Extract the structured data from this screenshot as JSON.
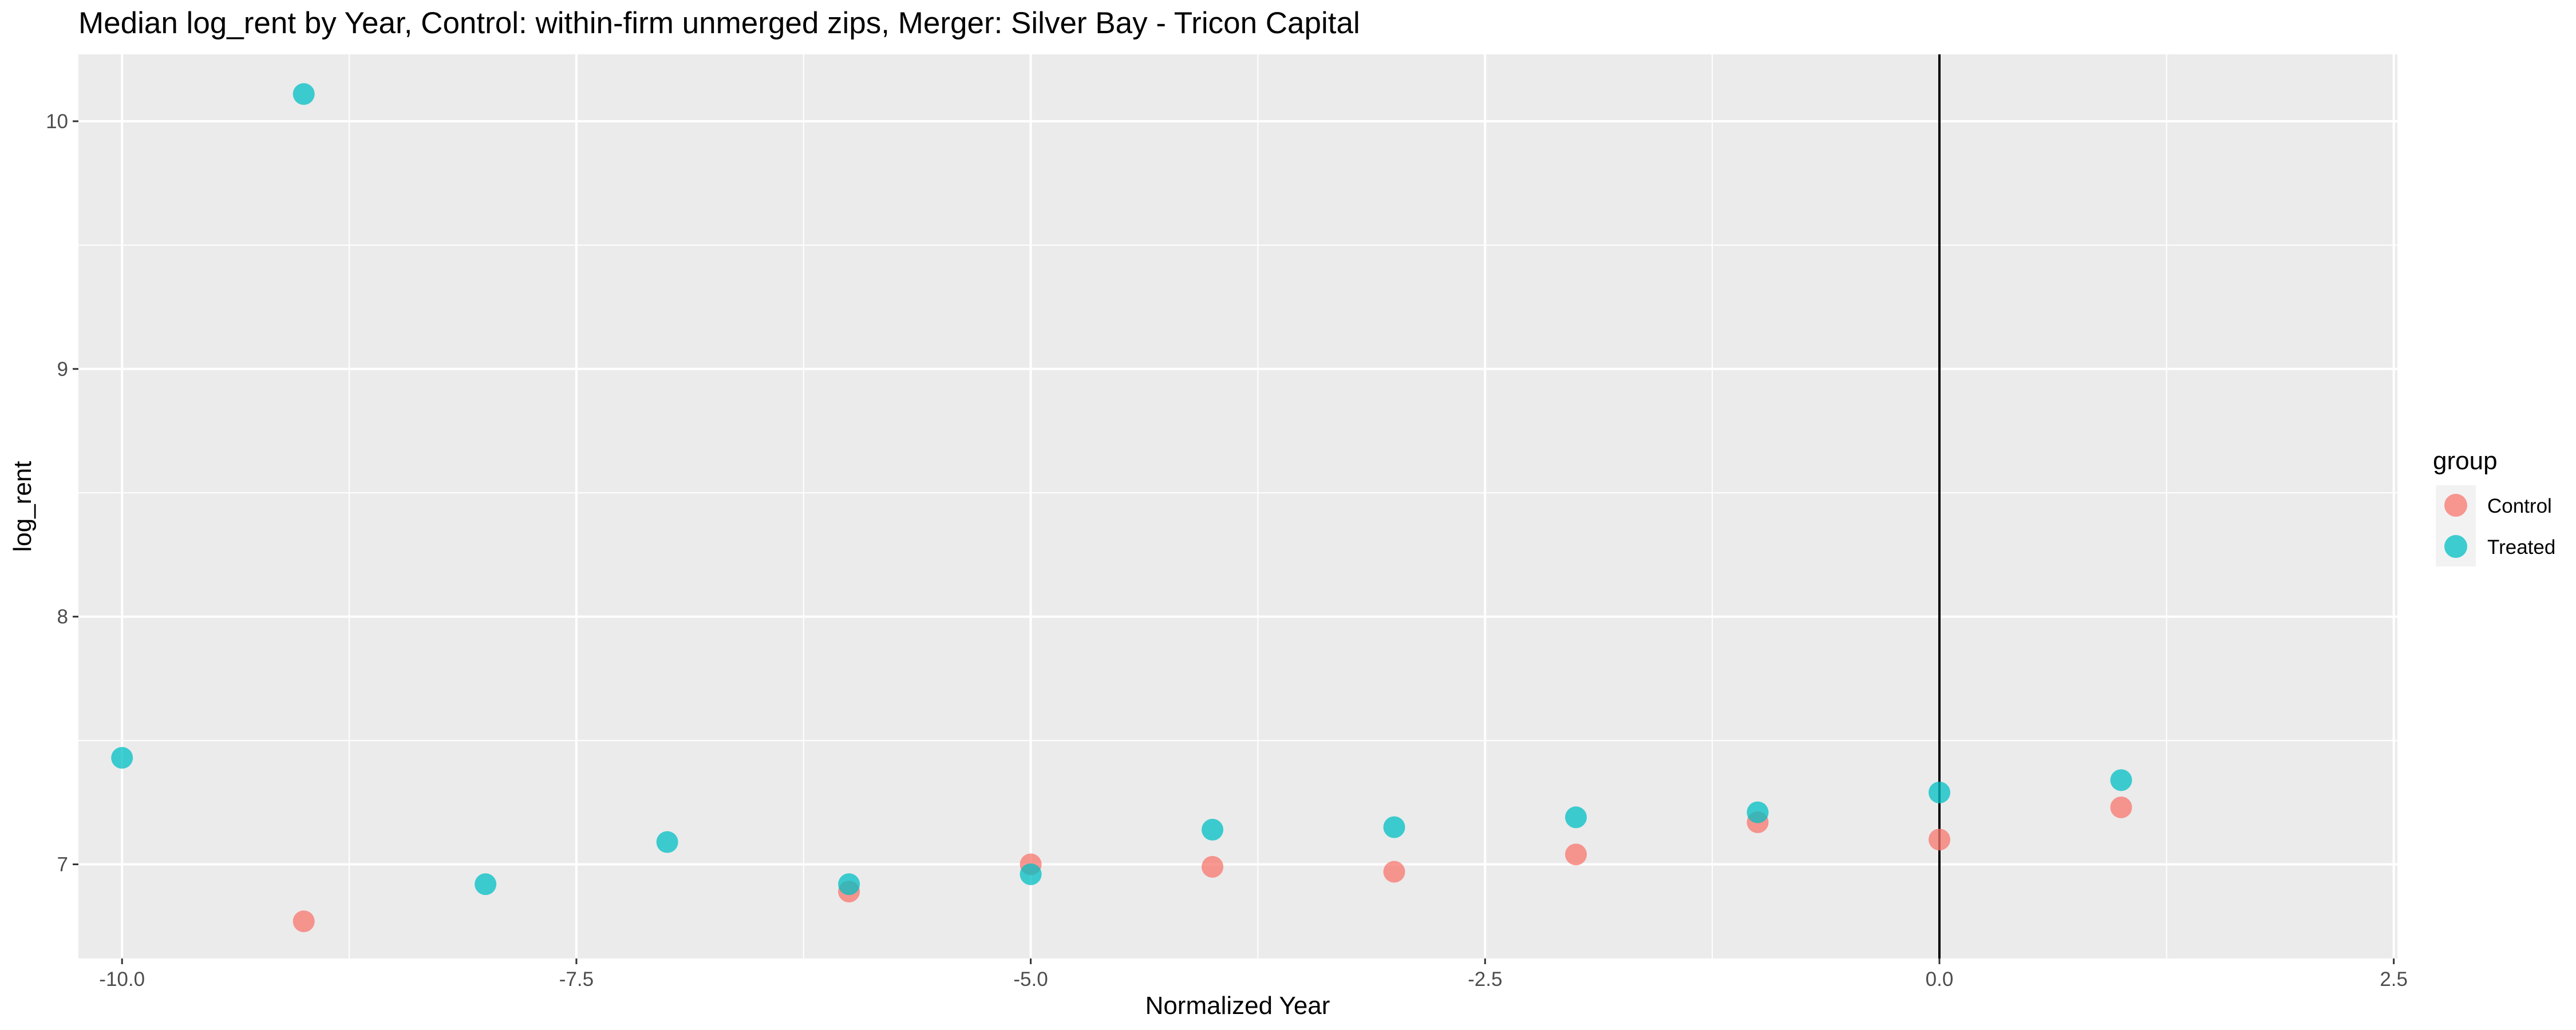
{
  "chart_data": {
    "type": "scatter",
    "title": "Median log_rent by Year, Control: within-firm unmerged zips, Merger: Silver Bay - Tricon Capital",
    "xlabel": "Normalized Year",
    "ylabel": "log_rent",
    "xlim": [
      -10.24,
      2.52
    ],
    "ylim": [
      6.62,
      10.27
    ],
    "x_ticks": [
      -10.0,
      -7.5,
      -5.0,
      -2.5,
      0.0,
      2.5
    ],
    "x_tick_labels": [
      "-10.0",
      "-7.5",
      "-5.0",
      "-2.5",
      "0.0",
      "2.5"
    ],
    "y_ticks": [
      7,
      8,
      9,
      10
    ],
    "y_tick_labels": [
      "7",
      "8",
      "9",
      "10"
    ],
    "grid": true,
    "vline_x": 0,
    "legend": {
      "title": "group",
      "placement": "right"
    },
    "series": [
      {
        "name": "Control",
        "color": "#F8766D",
        "points": [
          {
            "x": -9,
            "y": 6.77
          },
          {
            "x": -6,
            "y": 6.89
          },
          {
            "x": -5,
            "y": 7.0
          },
          {
            "x": -4,
            "y": 6.99
          },
          {
            "x": -3,
            "y": 6.97
          },
          {
            "x": -2,
            "y": 7.04
          },
          {
            "x": -1,
            "y": 7.17
          },
          {
            "x": 0,
            "y": 7.1
          },
          {
            "x": 1,
            "y": 7.23
          }
        ]
      },
      {
        "name": "Treated",
        "color": "#00BFC4",
        "points": [
          {
            "x": -10,
            "y": 7.43
          },
          {
            "x": -9,
            "y": 10.11
          },
          {
            "x": -8,
            "y": 6.92
          },
          {
            "x": -7,
            "y": 7.09
          },
          {
            "x": -6,
            "y": 6.92
          },
          {
            "x": -5,
            "y": 6.96
          },
          {
            "x": -4,
            "y": 7.14
          },
          {
            "x": -3,
            "y": 7.15
          },
          {
            "x": -2,
            "y": 7.19
          },
          {
            "x": -1,
            "y": 7.21
          },
          {
            "x": 0,
            "y": 7.29
          },
          {
            "x": 1,
            "y": 7.34
          }
        ]
      }
    ]
  }
}
